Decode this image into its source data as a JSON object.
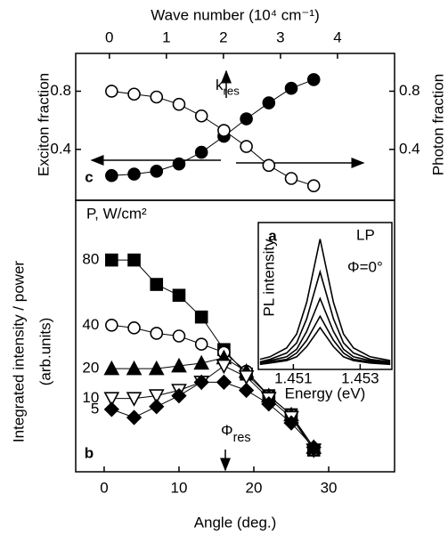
{
  "chart_data": [
    {
      "type": "line",
      "panel_label": "c",
      "x2label": "Wave number (10⁴ cm⁻¹)",
      "x2lim": [
        -0.59,
        5.0
      ],
      "x2ticks": [
        0,
        1,
        2,
        3,
        4
      ],
      "ylabel": "Exciton fraction",
      "y2label": "Photon fraction",
      "xlim": [
        -3.8,
        38.8
      ],
      "ylim": [
        0.05,
        1.06
      ],
      "yticks": [
        0.4,
        0.8
      ],
      "y2lim": [
        0.05,
        1.06
      ],
      "y2ticks": [
        0.4,
        0.8
      ],
      "x": [
        1,
        4,
        7,
        10,
        13,
        16,
        19,
        22,
        25,
        28
      ],
      "series": [
        {
          "marker": "circle",
          "fill": true,
          "color": "#000000",
          "values": [
            0.22,
            0.23,
            0.25,
            0.3,
            0.38,
            0.49,
            0.61,
            0.72,
            0.82,
            0.88
          ]
        },
        {
          "marker": "circle",
          "fill": false,
          "color": "#000000",
          "axis": "y2",
          "values": [
            0.8,
            0.78,
            0.76,
            0.71,
            0.63,
            0.53,
            0.42,
            0.29,
            0.2,
            0.15
          ]
        }
      ],
      "annotation": {
        "text": "k",
        "sub": "res"
      }
    },
    {
      "type": "line",
      "panel_label": "b",
      "xlabel": "Angle (deg.)",
      "ylabel": "Integrated intensity / power",
      "ylabel2": "(arb.units)",
      "xlim": [
        -3.8,
        38.8
      ],
      "xticks": [
        0,
        10,
        20,
        30
      ],
      "ylim": [
        0,
        100
      ],
      "legend_title": "P, W/cm²",
      "x": [
        1,
        4,
        7,
        10,
        13,
        16,
        19,
        22,
        25,
        28
      ],
      "series": [
        {
          "name": "80",
          "marker": "square",
          "fill": true,
          "color": "#000000",
          "values": [
            78,
            78,
            69,
            65,
            57,
            45,
            36,
            28,
            21,
            8
          ]
        },
        {
          "name": "40",
          "marker": "circle",
          "fill": false,
          "color": "#000000",
          "values": [
            54,
            53,
            51,
            50,
            47,
            44,
            37,
            28,
            21,
            8
          ]
        },
        {
          "name": "20",
          "marker": "triangle",
          "fill": true,
          "color": "#000000",
          "values": [
            38,
            38,
            38,
            39,
            40,
            42,
            37,
            28,
            21,
            9
          ]
        },
        {
          "name": "10",
          "marker": "triangle-down",
          "fill": false,
          "color": "#000000",
          "values": [
            27,
            27,
            28,
            30,
            33,
            39,
            35,
            27,
            20,
            8
          ]
        },
        {
          "name": "5",
          "marker": "diamond",
          "fill": true,
          "color": "#000000",
          "values": [
            23,
            20,
            24,
            28,
            33,
            33,
            30,
            25,
            18,
            9
          ]
        }
      ],
      "annotation": {
        "text": "Φ",
        "sub": "res"
      }
    },
    {
      "type": "curve",
      "panel_label": "a",
      "ylabel": "PL intensity",
      "xlabel": "Energy (eV)",
      "xlim": [
        1.44995,
        1.45395
      ],
      "xticks": [
        1.451,
        1.453
      ],
      "ylim": [
        0,
        1.16
      ],
      "annotations": [
        "LP",
        "Φ=0°"
      ],
      "x": [
        1.45,
        1.4503,
        1.4508,
        1.4511,
        1.4514,
        1.4518,
        1.4522,
        1.4525,
        1.4528,
        1.4533,
        1.4539
      ],
      "series": [
        {
          "color": "#000000",
          "values": [
            0.08,
            0.1,
            0.17,
            0.28,
            0.53,
            1.03,
            0.53,
            0.28,
            0.17,
            0.1,
            0.07
          ]
        },
        {
          "color": "#000000",
          "values": [
            0.06,
            0.08,
            0.13,
            0.21,
            0.4,
            0.77,
            0.4,
            0.21,
            0.13,
            0.08,
            0.06
          ]
        },
        {
          "color": "#000000",
          "values": [
            0.05,
            0.07,
            0.1,
            0.16,
            0.3,
            0.56,
            0.3,
            0.16,
            0.1,
            0.07,
            0.05
          ]
        },
        {
          "color": "#000000",
          "values": [
            0.05,
            0.06,
            0.08,
            0.13,
            0.23,
            0.42,
            0.23,
            0.13,
            0.08,
            0.06,
            0.04
          ]
        },
        {
          "color": "#000000",
          "values": [
            0.04,
            0.05,
            0.07,
            0.1,
            0.18,
            0.33,
            0.18,
            0.1,
            0.07,
            0.05,
            0.04
          ]
        }
      ]
    }
  ]
}
